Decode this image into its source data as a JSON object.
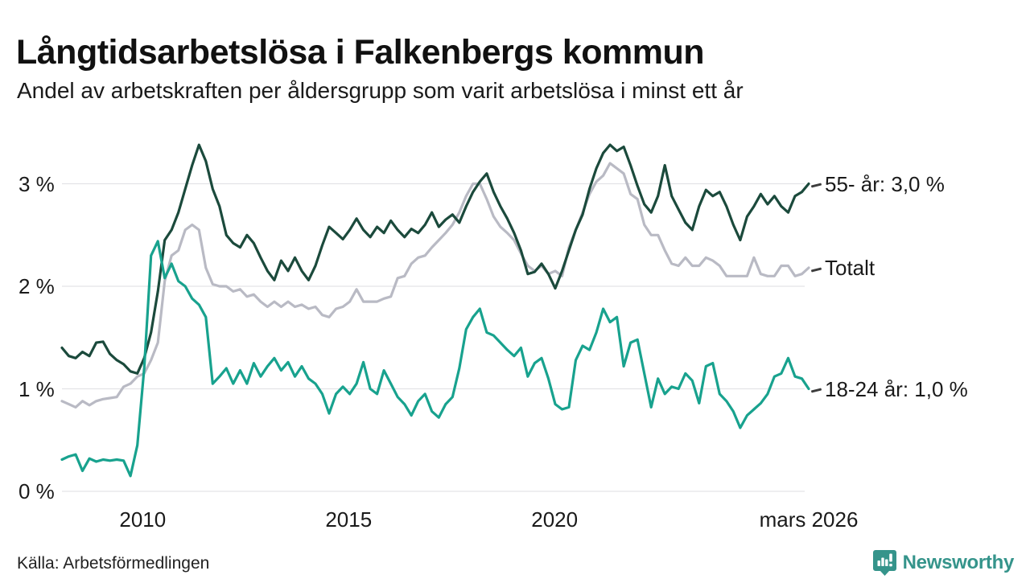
{
  "header": {
    "title": "Långtidsarbetslösa i Falkenbergs kommun",
    "subtitle": "Andel av arbetskraften per åldersgrupp som varit arbetslösa i minst ett år"
  },
  "source": {
    "label": "Källa: Arbetsförmedlingen"
  },
  "branding": {
    "name": "Newsworthy",
    "color": "#35948b",
    "icon": "newsworthy-speech-bubble-chart-icon"
  },
  "chart_data": {
    "type": "line",
    "title": "Långtidsarbetslösa i Falkenbergs kommun",
    "subtitle": "Andel av arbetskraften per åldersgrupp som varit arbetslösa i minst ett år",
    "unit": "%",
    "grid": "horizontal",
    "legend_position": "right-of-line-ends",
    "x_range": {
      "start": 2008.04,
      "end": 2026.17
    },
    "x_ticks": [
      {
        "t": 2010.0,
        "label": "2010"
      },
      {
        "t": 2015.0,
        "label": "2015"
      },
      {
        "t": 2020.0,
        "label": "2020"
      },
      {
        "t": 2026.17,
        "label": "mars 2026"
      }
    ],
    "y_ticks": [
      {
        "value": 0,
        "label": "0 %"
      },
      {
        "value": 1,
        "label": "1 %"
      },
      {
        "value": 2,
        "label": "2 %"
      },
      {
        "value": 3,
        "label": "3 %"
      }
    ],
    "ylim": [
      0,
      3.45
    ],
    "colors": {
      "gridline": "#e3e3e7",
      "axis_text": "#1a1a1a"
    },
    "series": [
      {
        "name": "Totalt",
        "end_label": "Totalt",
        "color": "#b9bac4",
        "values": [
          0.88,
          0.85,
          0.82,
          0.88,
          0.84,
          0.88,
          0.9,
          0.91,
          0.92,
          1.02,
          1.05,
          1.12,
          1.15,
          1.28,
          1.45,
          2.05,
          2.3,
          2.35,
          2.55,
          2.6,
          2.55,
          2.18,
          2.02,
          2.0,
          2.0,
          1.95,
          1.97,
          1.9,
          1.92,
          1.85,
          1.8,
          1.85,
          1.8,
          1.85,
          1.8,
          1.82,
          1.78,
          1.8,
          1.72,
          1.7,
          1.78,
          1.8,
          1.85,
          1.97,
          1.85,
          1.85,
          1.85,
          1.88,
          1.9,
          2.08,
          2.1,
          2.22,
          2.28,
          2.3,
          2.38,
          2.45,
          2.52,
          2.6,
          2.72,
          2.88,
          3.0,
          3.0,
          2.85,
          2.68,
          2.58,
          2.52,
          2.45,
          2.32,
          2.2,
          2.15,
          2.2,
          2.12,
          2.15,
          2.1,
          2.38,
          2.55,
          2.72,
          2.9,
          3.02,
          3.08,
          3.2,
          3.15,
          3.1,
          2.9,
          2.85,
          2.6,
          2.5,
          2.5,
          2.35,
          2.22,
          2.2,
          2.28,
          2.2,
          2.2,
          2.28,
          2.25,
          2.2,
          2.1,
          2.1,
          2.1,
          2.1,
          2.28,
          2.12,
          2.1,
          2.1,
          2.2,
          2.2,
          2.1,
          2.12,
          2.18
        ]
      },
      {
        "name": "55- år",
        "end_label": "55- år: 3,0 %",
        "last_value_label": "3,0 %",
        "color": "#1b4a3c",
        "values": [
          1.4,
          1.32,
          1.3,
          1.36,
          1.32,
          1.45,
          1.46,
          1.34,
          1.28,
          1.24,
          1.17,
          1.15,
          1.3,
          1.55,
          1.95,
          2.45,
          2.55,
          2.72,
          2.95,
          3.18,
          3.38,
          3.22,
          2.95,
          2.78,
          2.5,
          2.42,
          2.38,
          2.5,
          2.42,
          2.28,
          2.15,
          2.06,
          2.25,
          2.15,
          2.28,
          2.15,
          2.06,
          2.2,
          2.4,
          2.58,
          2.52,
          2.46,
          2.55,
          2.66,
          2.55,
          2.48,
          2.58,
          2.52,
          2.64,
          2.55,
          2.48,
          2.56,
          2.52,
          2.6,
          2.72,
          2.58,
          2.65,
          2.7,
          2.62,
          2.78,
          2.92,
          3.02,
          3.1,
          2.92,
          2.78,
          2.66,
          2.52,
          2.35,
          2.12,
          2.14,
          2.22,
          2.12,
          1.98,
          2.15,
          2.35,
          2.55,
          2.7,
          2.95,
          3.15,
          3.3,
          3.38,
          3.32,
          3.36,
          3.18,
          2.98,
          2.8,
          2.72,
          2.88,
          3.18,
          2.88,
          2.75,
          2.62,
          2.55,
          2.78,
          2.94,
          2.88,
          2.92,
          2.78,
          2.6,
          2.45,
          2.68,
          2.78,
          2.9,
          2.8,
          2.88,
          2.78,
          2.72,
          2.88,
          2.92,
          3.0
        ]
      },
      {
        "name": "18-24 år",
        "end_label": "18-24 år: 1,0 %",
        "last_value_label": "1,0 %",
        "color": "#18a28e",
        "values": [
          0.31,
          0.34,
          0.36,
          0.2,
          0.32,
          0.29,
          0.31,
          0.3,
          0.31,
          0.3,
          0.15,
          0.45,
          1.2,
          2.3,
          2.44,
          2.08,
          2.22,
          2.05,
          2.0,
          1.88,
          1.82,
          1.7,
          1.05,
          1.12,
          1.2,
          1.05,
          1.18,
          1.05,
          1.25,
          1.12,
          1.22,
          1.3,
          1.18,
          1.26,
          1.12,
          1.22,
          1.1,
          1.05,
          0.95,
          0.76,
          0.95,
          1.02,
          0.95,
          1.05,
          1.26,
          1.0,
          0.95,
          1.18,
          1.05,
          0.92,
          0.85,
          0.74,
          0.88,
          0.95,
          0.78,
          0.72,
          0.85,
          0.92,
          1.2,
          1.58,
          1.7,
          1.78,
          1.55,
          1.52,
          1.45,
          1.38,
          1.32,
          1.4,
          1.12,
          1.25,
          1.3,
          1.1,
          0.85,
          0.8,
          0.82,
          1.28,
          1.42,
          1.38,
          1.55,
          1.78,
          1.65,
          1.7,
          1.22,
          1.45,
          1.48,
          1.15,
          0.82,
          1.1,
          0.95,
          1.02,
          1.0,
          1.15,
          1.08,
          0.86,
          1.22,
          1.25,
          0.95,
          0.88,
          0.78,
          0.62,
          0.74,
          0.8,
          0.86,
          0.95,
          1.12,
          1.15,
          1.3,
          1.12,
          1.1,
          1.0
        ]
      }
    ]
  }
}
